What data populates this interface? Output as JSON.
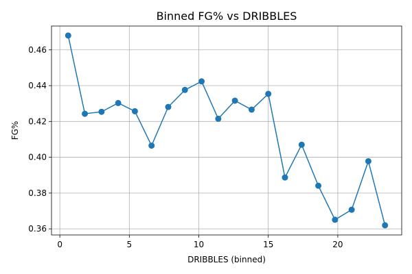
{
  "chart_data": {
    "type": "line",
    "title": "Binned FG% vs DRIBBLES",
    "xlabel": "DRIBBLES (binned)",
    "ylabel": "FG%",
    "xlim": [
      -0.6,
      24.6
    ],
    "ylim": [
      0.3566,
      0.4733
    ],
    "xticks": [
      0,
      5,
      10,
      15,
      20
    ],
    "xtick_labels": [
      "0",
      "5",
      "10",
      "15",
      "20"
    ],
    "yticks": [
      0.36,
      0.38,
      0.4,
      0.42,
      0.44,
      0.46
    ],
    "ytick_labels": [
      "0.36",
      "0.38",
      "0.40",
      "0.42",
      "0.44",
      "0.46"
    ],
    "grid": true,
    "color": "#1f77b4",
    "series": [
      {
        "x": [
          0.6,
          1.8,
          3.0,
          4.2,
          5.4,
          6.6,
          7.8,
          9.0,
          10.2,
          11.4,
          12.6,
          13.8,
          15.0,
          16.2,
          17.4,
          18.6,
          19.8,
          21.0,
          22.2,
          23.4
        ],
        "values": [
          0.468,
          0.4243,
          0.4254,
          0.4303,
          0.4257,
          0.4065,
          0.4281,
          0.4376,
          0.4424,
          0.4215,
          0.4316,
          0.4266,
          0.4354,
          0.3887,
          0.407,
          0.3841,
          0.3651,
          0.3707,
          0.3978,
          0.362
        ]
      }
    ]
  }
}
